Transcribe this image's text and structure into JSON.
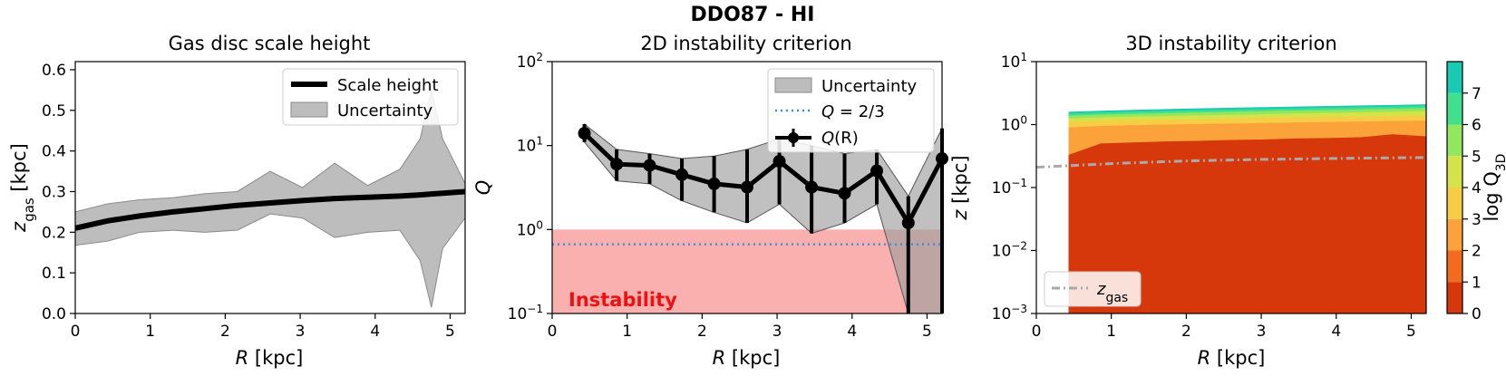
{
  "suptitle": "DDO87 - HI",
  "chart_data": [
    {
      "type": "line",
      "title": "Gas disc scale height",
      "xlabel": "R [kpc]",
      "ylabel_main": "z",
      "ylabel_sub": "gas",
      "ylabel_unit": " [kpc]",
      "xlim": [
        0,
        5.2
      ],
      "ylim": [
        0,
        0.62
      ],
      "xticks": [
        0,
        1,
        2,
        3,
        4,
        5
      ],
      "xtick_labels": [
        "0",
        "1",
        "2",
        "3",
        "4",
        "5"
      ],
      "yticks": [
        0.0,
        0.1,
        0.2,
        0.3,
        0.4,
        0.5,
        0.6
      ],
      "ytick_labels": [
        "0.0",
        "0.1",
        "0.2",
        "0.3",
        "0.4",
        "0.5",
        "0.6"
      ],
      "legend": [
        "Scale height",
        "Uncertainty"
      ],
      "x": [
        0,
        0.43,
        0.86,
        1.3,
        1.73,
        2.16,
        2.6,
        3.03,
        3.46,
        3.9,
        4.33,
        4.6,
        4.75,
        4.9,
        5.2
      ],
      "y": [
        0.21,
        0.228,
        0.24,
        0.25,
        0.258,
        0.266,
        0.272,
        0.278,
        0.283,
        0.286,
        0.289,
        0.292,
        0.294,
        0.296,
        0.3
      ],
      "y_low": [
        0.168,
        0.178,
        0.2,
        0.205,
        0.2,
        0.205,
        0.245,
        0.235,
        0.187,
        0.2,
        0.205,
        0.13,
        0.015,
        0.16,
        0.235
      ],
      "y_high": [
        0.25,
        0.27,
        0.28,
        0.285,
        0.295,
        0.3,
        0.35,
        0.31,
        0.37,
        0.315,
        0.355,
        0.43,
        0.55,
        0.43,
        0.32
      ]
    },
    {
      "type": "line",
      "title": "2D instability criterion",
      "xlabel": "R [kpc]",
      "ylabel": "Q",
      "yscale": "log",
      "xlim": [
        0,
        5.2
      ],
      "ylim": [
        0.1,
        100
      ],
      "xticks": [
        0,
        1,
        2,
        3,
        4,
        5
      ],
      "xtick_labels": [
        "0",
        "1",
        "2",
        "3",
        "4",
        "5"
      ],
      "yticks": [
        0.1,
        1,
        10,
        100
      ],
      "ytick_base": "10",
      "ytick_exps": [
        "−1",
        "0",
        "1",
        "2"
      ],
      "legend": [
        "Uncertainty",
        "Q = 2/3",
        "Q(R)"
      ],
      "threshold": 0.6667,
      "threshold_label_q": "Q",
      "threshold_label_rest": " = 2/3",
      "series_label_q": "Q",
      "series_label_rest": "(R)",
      "instability_label": "Instability",
      "instability_ymax": 1.0,
      "x": [
        0.43,
        0.86,
        1.3,
        1.73,
        2.16,
        2.6,
        3.03,
        3.46,
        3.9,
        4.33,
        4.75,
        5.2
      ],
      "y": [
        14,
        6,
        5.8,
        4.5,
        3.5,
        3.2,
        6.5,
        3.2,
        2.7,
        5.0,
        1.2,
        7.0
      ],
      "y_low": [
        11,
        3.8,
        3.5,
        2.2,
        1.6,
        1.2,
        2.0,
        0.9,
        1.2,
        2.0,
        0.1,
        0.1
      ],
      "y_high": [
        18,
        9.0,
        8.0,
        7.0,
        7.5,
        9.0,
        12,
        10,
        8.0,
        9.0,
        2.5,
        16
      ]
    },
    {
      "type": "heatmap",
      "title": "3D instability criterion",
      "xlabel": "R [kpc]",
      "ylabel_main": "z",
      "ylabel_unit": " [kpc]",
      "yscale": "log",
      "xlim": [
        0,
        5.2
      ],
      "ylim": [
        0.001,
        10
      ],
      "xticks": [
        0,
        1,
        2,
        3,
        4,
        5
      ],
      "xtick_labels": [
        "0",
        "1",
        "2",
        "3",
        "4",
        "5"
      ],
      "yticks": [
        0.001,
        0.01,
        0.1,
        1,
        10
      ],
      "ytick_base": "10",
      "ytick_exps": [
        "−3",
        "−2",
        "−1",
        "0",
        "1"
      ],
      "legend_main": "z",
      "legend_sub": "gas",
      "colorbar_label": "log Q",
      "colorbar_sub": "3D",
      "colorbar_ticks": [
        "0",
        "1",
        "2",
        "3",
        "4",
        "5",
        "6",
        "7"
      ],
      "level_colors": [
        "#d7380b",
        "#f26b1e",
        "#fba33a",
        "#f6cd45",
        "#d5e34b",
        "#93e75e",
        "#42df8f",
        "#19c9b2"
      ],
      "r": [
        0.43,
        0.86,
        1.3,
        1.73,
        2.16,
        2.6,
        3.03,
        3.46,
        3.9,
        4.33,
        4.75,
        5.2
      ],
      "level_tops": [
        [
          0.33,
          0.5,
          0.52,
          0.54,
          0.55,
          0.57,
          0.58,
          0.6,
          0.61,
          0.63,
          0.7,
          0.65
        ],
        [
          0.9,
          0.95,
          0.98,
          1.0,
          1.02,
          1.04,
          1.06,
          1.08,
          1.1,
          1.12,
          1.14,
          1.16
        ],
        [
          1.1,
          1.15,
          1.18,
          1.2,
          1.22,
          1.25,
          1.27,
          1.3,
          1.32,
          1.34,
          1.37,
          1.4
        ],
        [
          1.25,
          1.3,
          1.34,
          1.37,
          1.4,
          1.43,
          1.46,
          1.5,
          1.53,
          1.56,
          1.6,
          1.63
        ],
        [
          1.38,
          1.44,
          1.48,
          1.52,
          1.56,
          1.6,
          1.63,
          1.67,
          1.7,
          1.74,
          1.78,
          1.82
        ],
        [
          1.5,
          1.56,
          1.61,
          1.65,
          1.69,
          1.73,
          1.77,
          1.81,
          1.85,
          1.89,
          1.93,
          1.97
        ],
        [
          1.6,
          1.66,
          1.71,
          1.76,
          1.81,
          1.85,
          1.89,
          1.93,
          1.97,
          2.01,
          2.05,
          2.1
        ]
      ],
      "zgas_x": [
        0,
        1,
        2,
        3,
        4,
        5.2
      ],
      "zgas_y": [
        0.21,
        0.24,
        0.265,
        0.28,
        0.29,
        0.3
      ]
    }
  ]
}
